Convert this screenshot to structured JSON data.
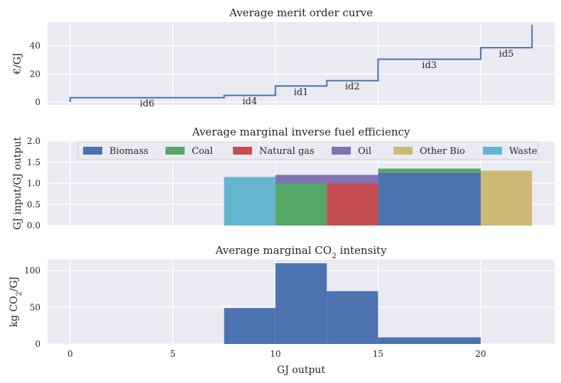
{
  "chart_data": [
    {
      "type": "line",
      "subtype": "step",
      "title": "Average merit order curve",
      "xlabel": "",
      "ylabel": "€/GJ",
      "xlim": [
        -1.1,
        23.6
      ],
      "ylim": [
        -2,
        57
      ],
      "x_ticks": [
        0,
        5,
        10,
        15,
        20
      ],
      "y_ticks": [
        0,
        20,
        40
      ],
      "grid": true,
      "line_color": "#4c72b0",
      "steps": [
        {
          "x0": 0,
          "x1": 7.5,
          "y": 3.2
        },
        {
          "x0": 7.5,
          "x1": 10,
          "y": 4.8
        },
        {
          "x0": 10,
          "x1": 12.5,
          "y": 11.5
        },
        {
          "x0": 12.5,
          "x1": 15,
          "y": 15.3
        },
        {
          "x0": 15,
          "x1": 20,
          "y": 30.5
        },
        {
          "x0": 20,
          "x1": 22.5,
          "y": 38.7
        }
      ],
      "start_y": 0,
      "end_y": 55,
      "annotations": [
        {
          "text": "id6",
          "x": 3.75,
          "y": -0.5
        },
        {
          "text": "id4",
          "x": 8.75,
          "y": 1.0
        },
        {
          "text": "id1",
          "x": 11.25,
          "y": 7.7
        },
        {
          "text": "id2",
          "x": 13.75,
          "y": 11.5
        },
        {
          "text": "id3",
          "x": 17.5,
          "y": 26.7
        },
        {
          "text": "id5",
          "x": 21.25,
          "y": 34.9
        }
      ]
    },
    {
      "type": "bar",
      "title": "Average marginal inverse fuel efficiency",
      "xlabel": "",
      "ylabel": "GJ input/GJ output",
      "xlim": [
        -1.1,
        23.6
      ],
      "ylim": [
        0,
        2.0
      ],
      "x_ticks": [
        0,
        5,
        10,
        15,
        20
      ],
      "y_ticks": [
        0.0,
        0.5,
        1.0,
        1.5,
        2.0
      ],
      "y_tick_labels": [
        "0.0",
        "0.5",
        "1.0",
        "1.5",
        "2.0"
      ],
      "grid": true,
      "legend": {
        "placement": "top",
        "items": [
          {
            "label": "Biomass",
            "color": "#4c72b0"
          },
          {
            "label": "Coal",
            "color": "#55a868"
          },
          {
            "label": "Natural gas",
            "color": "#c44e52"
          },
          {
            "label": "Oil",
            "color": "#8172b2"
          },
          {
            "label": "Other Bio",
            "color": "#ccb974"
          },
          {
            "label": "Waste",
            "color": "#64b5cd"
          }
        ]
      },
      "bars": [
        {
          "fuel": "Waste",
          "x0": 7.5,
          "x1": 10,
          "bottom": 0,
          "value": 1.15
        },
        {
          "fuel": "Coal",
          "x0": 10,
          "x1": 12.5,
          "bottom": 0,
          "value": 1.0
        },
        {
          "fuel": "Oil",
          "x0": 10,
          "x1": 12.5,
          "bottom": 1.0,
          "value": 0.2
        },
        {
          "fuel": "Natural gas",
          "x0": 12.5,
          "x1": 15,
          "bottom": 0,
          "value": 1.0
        },
        {
          "fuel": "Oil",
          "x0": 12.5,
          "x1": 15,
          "bottom": 1.0,
          "value": 0.2
        },
        {
          "fuel": "Biomass",
          "x0": 15,
          "x1": 20,
          "bottom": 0,
          "value": 1.25
        },
        {
          "fuel": "Coal",
          "x0": 15,
          "x1": 20,
          "bottom": 1.25,
          "value": 0.1
        },
        {
          "fuel": "Other Bio",
          "x0": 20,
          "x1": 22.5,
          "bottom": 0,
          "value": 1.3
        }
      ]
    },
    {
      "type": "bar",
      "title": "Average marginal CO2 intensity",
      "title_parts": {
        "main": "Average marginal CO",
        "sub": "2",
        "tail": " intensity"
      },
      "xlabel": "GJ output",
      "ylabel": "kg CO2/GJ",
      "ylabel_parts": {
        "main": "kg CO",
        "sub": "2",
        "tail": "/GJ"
      },
      "xlim": [
        -1.1,
        23.6
      ],
      "ylim": [
        0,
        115
      ],
      "x_ticks": [
        0,
        5,
        10,
        15,
        20
      ],
      "y_ticks": [
        0,
        50,
        100
      ],
      "grid": true,
      "bar_color": "#4c72b0",
      "bars": [
        {
          "x0": 7.5,
          "x1": 10,
          "value": 49
        },
        {
          "x0": 10,
          "x1": 12.5,
          "value": 110
        },
        {
          "x0": 12.5,
          "x1": 15,
          "value": 72
        },
        {
          "x0": 15,
          "x1": 20,
          "value": 9
        }
      ]
    }
  ]
}
